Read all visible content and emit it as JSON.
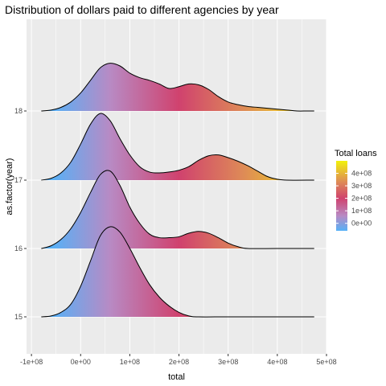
{
  "chart_data": {
    "type": "area",
    "subtype": "ridgeline",
    "title": "Distribution of dollars paid to different agencies by year",
    "xlabel": "total",
    "ylabel": "as.factor(year)",
    "xlim": [
      -110000000,
      500000000
    ],
    "x_ticks": [
      -100000000,
      0,
      100000000,
      200000000,
      300000000,
      400000000,
      500000000
    ],
    "x_tick_labels": [
      "-1e+08",
      "0e+00",
      "1e+08",
      "2e+08",
      "3e+08",
      "4e+08",
      "5e+08"
    ],
    "categories": [
      "15",
      "16",
      "17",
      "18"
    ],
    "grid": true,
    "fill": "gradient by x value",
    "series": [
      {
        "category": "15",
        "x": [
          -80000000,
          -60000000,
          -40000000,
          -20000000,
          0,
          20000000,
          40000000,
          60000000,
          80000000,
          100000000,
          120000000,
          140000000,
          160000000,
          180000000,
          200000000,
          220000000,
          240000000,
          300000000,
          400000000,
          475000000
        ],
        "density": [
          0.0,
          0.01,
          0.05,
          0.14,
          0.34,
          0.62,
          0.9,
          1.0,
          0.94,
          0.76,
          0.55,
          0.36,
          0.22,
          0.12,
          0.05,
          0.01,
          0.0,
          0.0,
          0.0,
          0.0
        ]
      },
      {
        "category": "16",
        "x": [
          -80000000,
          -60000000,
          -40000000,
          -20000000,
          0,
          20000000,
          40000000,
          60000000,
          80000000,
          100000000,
          120000000,
          140000000,
          160000000,
          180000000,
          200000000,
          220000000,
          240000000,
          260000000,
          280000000,
          300000000,
          320000000,
          340000000,
          400000000,
          475000000
        ],
        "density": [
          0.0,
          0.03,
          0.1,
          0.22,
          0.4,
          0.62,
          0.82,
          0.86,
          0.7,
          0.46,
          0.28,
          0.16,
          0.12,
          0.12,
          0.13,
          0.17,
          0.19,
          0.17,
          0.12,
          0.06,
          0.02,
          0.0,
          0.0,
          0.0
        ]
      },
      {
        "category": "17",
        "x": [
          -80000000,
          -60000000,
          -40000000,
          -20000000,
          0,
          20000000,
          40000000,
          60000000,
          80000000,
          100000000,
          120000000,
          140000000,
          160000000,
          180000000,
          200000000,
          220000000,
          240000000,
          260000000,
          280000000,
          300000000,
          320000000,
          340000000,
          360000000,
          380000000,
          400000000,
          420000000,
          475000000
        ],
        "density": [
          0.0,
          0.02,
          0.08,
          0.2,
          0.4,
          0.62,
          0.74,
          0.66,
          0.46,
          0.28,
          0.15,
          0.09,
          0.08,
          0.09,
          0.11,
          0.15,
          0.22,
          0.27,
          0.28,
          0.25,
          0.21,
          0.16,
          0.1,
          0.04,
          0.01,
          0.0,
          0.0
        ]
      },
      {
        "category": "18",
        "x": [
          -80000000,
          -60000000,
          -40000000,
          -20000000,
          0,
          20000000,
          40000000,
          60000000,
          80000000,
          100000000,
          120000000,
          140000000,
          160000000,
          180000000,
          200000000,
          220000000,
          240000000,
          260000000,
          280000000,
          300000000,
          320000000,
          340000000,
          360000000,
          380000000,
          400000000,
          420000000,
          440000000,
          460000000,
          475000000
        ],
        "density": [
          0.0,
          0.01,
          0.04,
          0.1,
          0.2,
          0.34,
          0.48,
          0.53,
          0.5,
          0.42,
          0.37,
          0.34,
          0.3,
          0.25,
          0.27,
          0.3,
          0.29,
          0.24,
          0.16,
          0.1,
          0.07,
          0.05,
          0.04,
          0.03,
          0.02,
          0.01,
          0.0,
          0.0,
          0.0
        ]
      }
    ],
    "legend": {
      "title": "Total loans",
      "position": "right",
      "min": -60000000,
      "max": 500000000,
      "ticks": [
        0,
        100000000,
        200000000,
        300000000,
        400000000
      ],
      "tick_labels": [
        "0e+00",
        "1e+08",
        "2e+08",
        "3e+08",
        "4e+08"
      ],
      "colors": [
        "#56B1F7",
        "#B88AC4",
        "#D0426E",
        "#DE8A57",
        "#F2F20B"
      ],
      "color_stops": [
        -60000000,
        60000000,
        200000000,
        330000000,
        500000000
      ]
    },
    "colors": {
      "panel_background": "#EBEBEB",
      "grid_major": "#FFFFFF",
      "outline": "#000000"
    }
  }
}
